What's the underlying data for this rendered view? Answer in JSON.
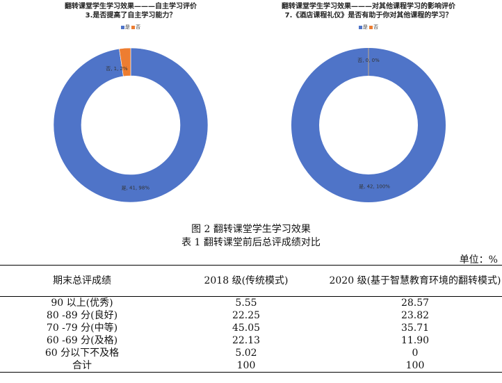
{
  "chart_data": [
    {
      "type": "pie",
      "title_line1": "翻转课堂学生学习效果———自主学习评价",
      "title_line2": "3.是否提高了自主学习能力？",
      "legend": [
        "是",
        "否"
      ],
      "colors": [
        "#4f74c8",
        "#ed7d31"
      ],
      "slices": [
        {
          "label": "是",
          "value": 41,
          "percent": "98%",
          "text": "是, 41, 98%"
        },
        {
          "label": "否",
          "value": 1,
          "percent": "2%",
          "text": "否, 1, 2%"
        }
      ]
    },
    {
      "type": "pie",
      "title_line1": "翻转课堂学生学习效果———对其他课程学习的影响评价",
      "title_line2": "7.《酒店课程礼仪》是否有助于你对其他课程的学习？",
      "legend": [
        "是",
        "否"
      ],
      "colors": [
        "#4f74c8",
        "#ed7d31"
      ],
      "slices": [
        {
          "label": "是",
          "value": 42,
          "percent": "100%",
          "text": "是, 42, 100%"
        },
        {
          "label": "否",
          "value": 0,
          "percent": "0%",
          "text": "否, 0, 0%"
        }
      ]
    }
  ],
  "figure_caption": "图 2  翻转课堂学生学习效果",
  "table_caption": "表 1  翻转课堂前后总评成绩对比",
  "unit": "单位：%",
  "table": {
    "headers": [
      "期末总评成绩",
      "2018 级(传统模式)",
      "2020 级(基于智慧教育环境的翻转模式)"
    ],
    "rows": [
      [
        "90 以上(优秀)",
        "5.55",
        "28.57"
      ],
      [
        "80 -89 分(良好)",
        "22.25",
        "23.82"
      ],
      [
        "70 -79 分(中等)",
        "45.05",
        "35.71"
      ],
      [
        "60 -69 分(及格)",
        "22.13",
        "11.90"
      ],
      [
        "60 分以下不及格",
        "5.02",
        "0"
      ],
      [
        "合计",
        "100",
        "100"
      ]
    ]
  }
}
